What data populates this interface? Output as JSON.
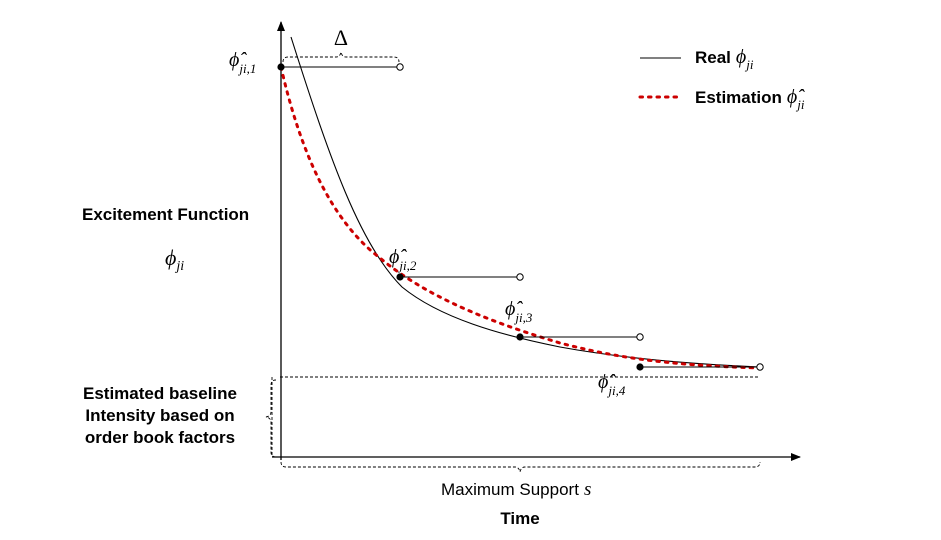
{
  "labels": {
    "delta": "Δ",
    "y_axis_line1": "Excitement Function",
    "y_axis_symbol": "ϕ",
    "y_axis_symbol_sub": "ji",
    "baseline_line1": "Estimated baseline",
    "baseline_line2": "Intensity based on",
    "baseline_line3": "order book factors",
    "max_support_text": "Maximum Support",
    "max_support_symbol": "s",
    "x_axis_title": "Time"
  },
  "legend": {
    "real_text": "Real",
    "real_symbol": "ϕ",
    "real_sub": "ji",
    "est_text": "Estimation",
    "est_symbol": "ϕ̂",
    "est_sub": "ji"
  },
  "points": [
    {
      "symbol": "ϕ̂",
      "sub": "ji,1"
    },
    {
      "symbol": "ϕ̂",
      "sub": "ji,2"
    },
    {
      "symbol": "ϕ̂",
      "sub": "ji,3"
    },
    {
      "symbol": "ϕ̂",
      "sub": "ji,4"
    }
  ],
  "colors": {
    "real_curve": "#000000",
    "estimation_curve": "#cc0000",
    "axis": "#000000"
  }
}
